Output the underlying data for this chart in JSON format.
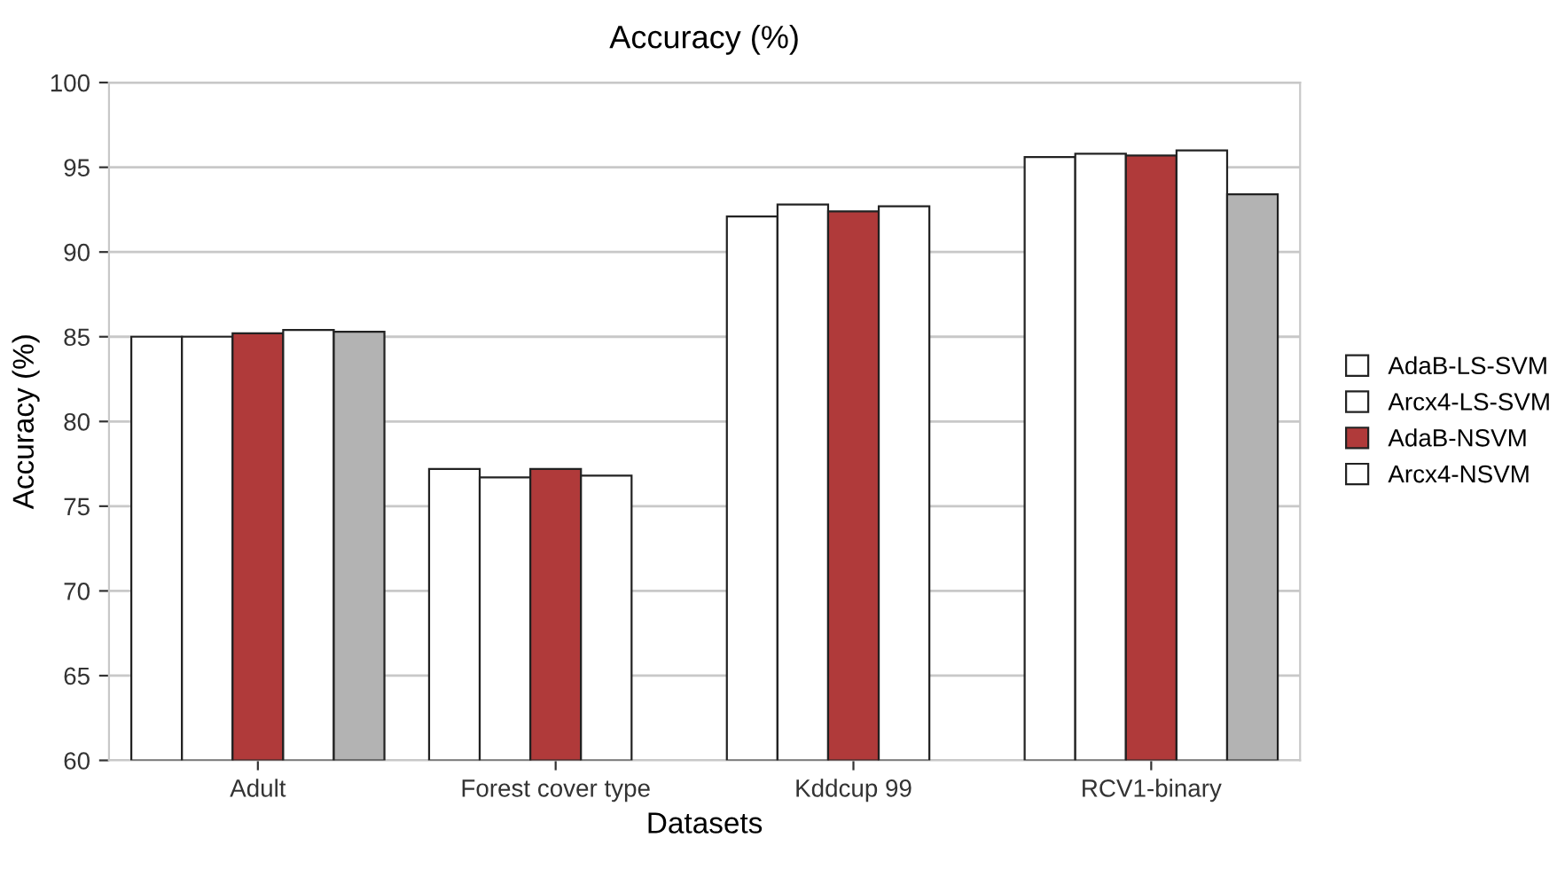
{
  "chart_data": {
    "type": "bar",
    "title": "Accuracy (%)",
    "xlabel": "Datasets",
    "ylabel": "Accuracy (%)",
    "categories": [
      "Adult",
      "Forest cover type",
      "Kddcup 99",
      "RCV1-binary"
    ],
    "series": [
      {
        "name": "AdaB-LS-SVM",
        "color": "#ffffff",
        "values": [
          85.0,
          77.2,
          92.1,
          95.6
        ]
      },
      {
        "name": "Arcx4-LS-SVM",
        "color": "#ffffff",
        "values": [
          85.0,
          76.7,
          92.8,
          95.8
        ]
      },
      {
        "name": "AdaB-NSVM",
        "color": "#b03a3a",
        "values": [
          85.2,
          77.2,
          92.4,
          95.7
        ]
      },
      {
        "name": "Arcx4-NSVM",
        "color": "#ffffff",
        "values": [
          85.4,
          76.8,
          92.7,
          96.0
        ]
      },
      {
        "color": "#b3b3b3",
        "values": [
          85.3,
          null,
          null,
          93.4
        ]
      }
    ],
    "ylim": [
      60,
      100
    ],
    "yticks": [
      60,
      65,
      70,
      75,
      80,
      85,
      90,
      95,
      100
    ],
    "grid": "y",
    "legend": "right"
  }
}
